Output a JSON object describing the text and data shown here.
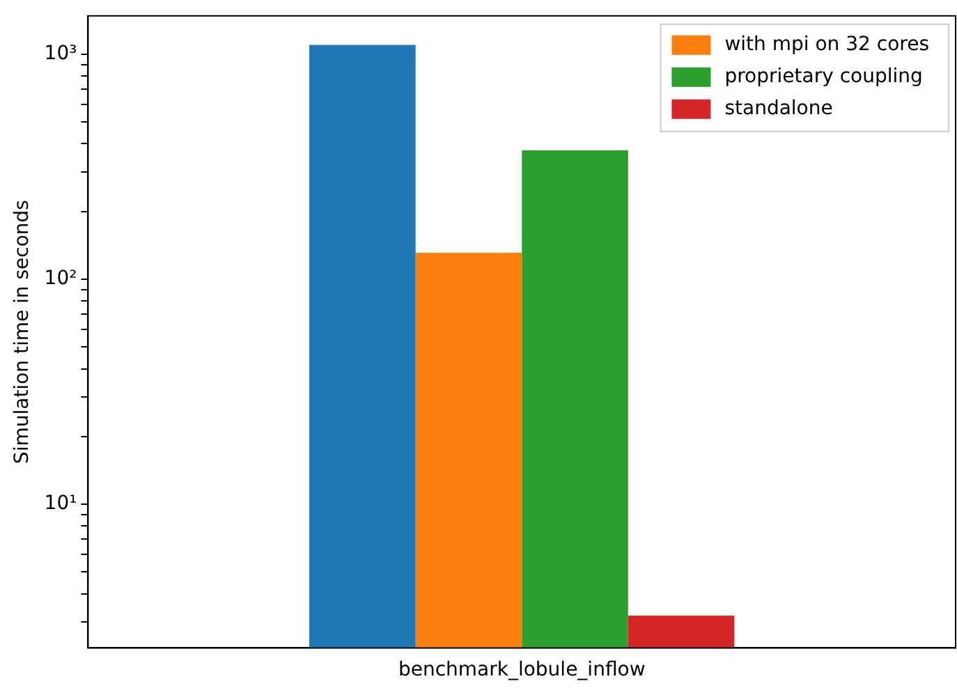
{
  "chart_data": {
    "type": "bar",
    "ylabel": "Simulation time in seconds",
    "categories": [
      "benchmark_lobule_inflow"
    ],
    "series": [
      {
        "color": "#1f77b4",
        "values": [
          1100
        ]
      },
      {
        "name": "with mpi on 32 cores",
        "color": "#ff7f0e",
        "values": [
          131
        ]
      },
      {
        "name": "proprietary coupling",
        "color": "#2ca02c",
        "values": [
          374
        ]
      },
      {
        "name": "standalone",
        "color": "#d62728",
        "values": [
          3.2
        ]
      }
    ],
    "log": true,
    "ylim": [
      2.3,
      1480
    ],
    "yticks": [
      {
        "value": 3,
        "label": null
      },
      {
        "value": 4,
        "label": null
      },
      {
        "value": 5,
        "label": null
      },
      {
        "value": 6,
        "label": null
      },
      {
        "value": 7,
        "label": null
      },
      {
        "value": 8,
        "label": null
      },
      {
        "value": 9,
        "label": null
      },
      {
        "value": 10,
        "label": "10¹"
      },
      {
        "value": 20,
        "label": null
      },
      {
        "value": 30,
        "label": null
      },
      {
        "value": 40,
        "label": null
      },
      {
        "value": 50,
        "label": null
      },
      {
        "value": 60,
        "label": null
      },
      {
        "value": 70,
        "label": null
      },
      {
        "value": 80,
        "label": null
      },
      {
        "value": 90,
        "label": null
      },
      {
        "value": 100,
        "label": "10²"
      },
      {
        "value": 200,
        "label": null
      },
      {
        "value": 300,
        "label": null
      },
      {
        "value": 400,
        "label": null
      },
      {
        "value": 500,
        "label": null
      },
      {
        "value": 600,
        "label": null
      },
      {
        "value": 700,
        "label": null
      },
      {
        "value": 800,
        "label": null
      },
      {
        "value": 900,
        "label": null
      },
      {
        "value": 1000,
        "label": "10³"
      }
    ],
    "grid": false,
    "legend": "top right"
  }
}
